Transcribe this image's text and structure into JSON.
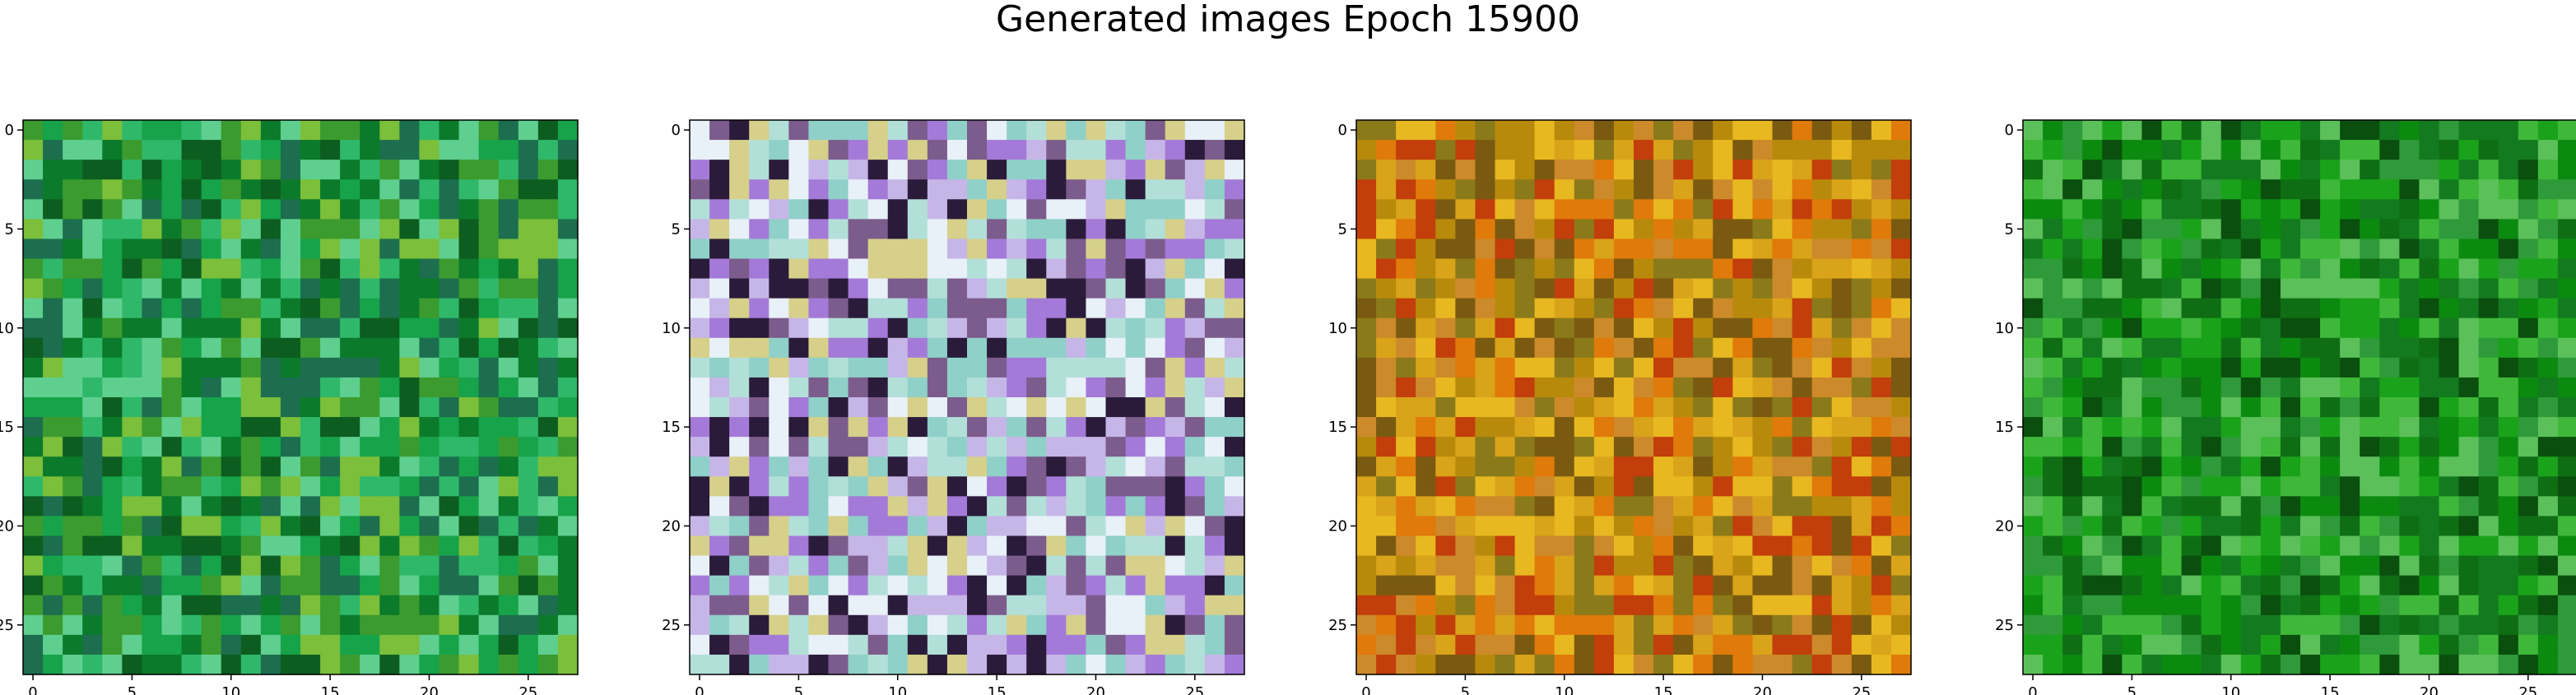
{
  "title": "Generated images Epoch 15900",
  "chart_data": {
    "type": "heatmap",
    "title": "Generated images Epoch 15900",
    "image_grid": "28x28 RGB",
    "panels": [
      {
        "dominant_color": "#1f8f3f",
        "palette": [
          "#0b7a2a",
          "#16a34a",
          "#2fb86a",
          "#5fcf8f",
          "#0d5d20",
          "#3c9b2f",
          "#7bbf3a",
          "#1c6e4e"
        ],
        "x_ticks": [
          0,
          5,
          10,
          15,
          20,
          25
        ],
        "y_ticks": [
          0,
          5,
          10,
          15,
          20,
          25
        ],
        "xlim": [
          -0.5,
          27.5
        ],
        "ylim": [
          27.5,
          -0.5
        ]
      },
      {
        "dominant_color": "#c9c9e8",
        "palette": [
          "#e8f0f8",
          "#c6b6e8",
          "#8fd0c8",
          "#a47ad8",
          "#d6d08a",
          "#2a1b3a",
          "#7c5c8c",
          "#b2e0d8"
        ],
        "x_ticks": [
          0,
          5,
          10,
          15,
          20,
          25
        ],
        "y_ticks": [
          0,
          5,
          10,
          15,
          20,
          25
        ],
        "xlim": [
          -0.5,
          27.5
        ],
        "ylim": [
          27.5,
          -0.5
        ]
      },
      {
        "dominant_color": "#d49a1a",
        "palette": [
          "#e07a0a",
          "#d9a31a",
          "#b88a0c",
          "#8a7a1a",
          "#c23e0a",
          "#e8b820",
          "#7a5a10",
          "#cc8a2a"
        ],
        "x_ticks": [
          0,
          5,
          10,
          15,
          20,
          25
        ],
        "y_ticks": [
          0,
          5,
          10,
          15,
          20,
          25
        ],
        "xlim": [
          -0.5,
          27.5
        ],
        "ylim": [
          27.5,
          -0.5
        ]
      },
      {
        "dominant_color": "#1f8f2a",
        "palette": [
          "#0c8a10",
          "#1aa31a",
          "#0f6e14",
          "#3fb83a",
          "#0a4f0e",
          "#2f9a3a",
          "#5cc05a",
          "#137a1f"
        ],
        "x_ticks": [
          0,
          5,
          10,
          15,
          20,
          25
        ],
        "y_ticks": [
          0,
          5,
          10,
          15,
          20,
          25
        ],
        "xlim": [
          -0.5,
          27.5
        ],
        "ylim": [
          27.5,
          -0.5
        ]
      }
    ]
  }
}
